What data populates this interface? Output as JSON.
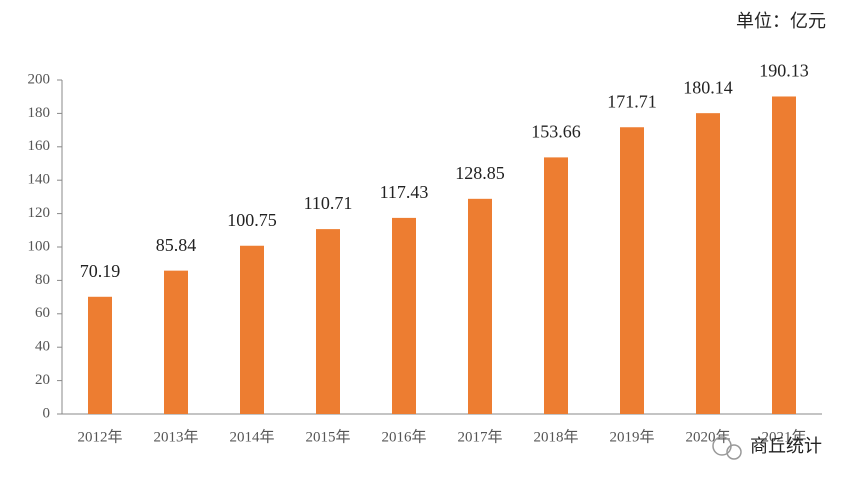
{
  "chart_data": {
    "type": "bar",
    "unit_label": "单位：亿元",
    "categories": [
      "2012年",
      "2013年",
      "2014年",
      "2015年",
      "2016年",
      "2017年",
      "2018年",
      "2019年",
      "2020年",
      "2021年"
    ],
    "values": [
      70.19,
      85.84,
      100.75,
      110.71,
      117.43,
      128.85,
      153.66,
      171.71,
      180.14,
      190.13
    ],
    "color": "#ed7d31",
    "ylim": [
      0,
      200
    ],
    "yticks": [
      0,
      20,
      40,
      60,
      80,
      100,
      120,
      140,
      160,
      180,
      200
    ],
    "grid": false
  },
  "watermark": "商丘统计"
}
